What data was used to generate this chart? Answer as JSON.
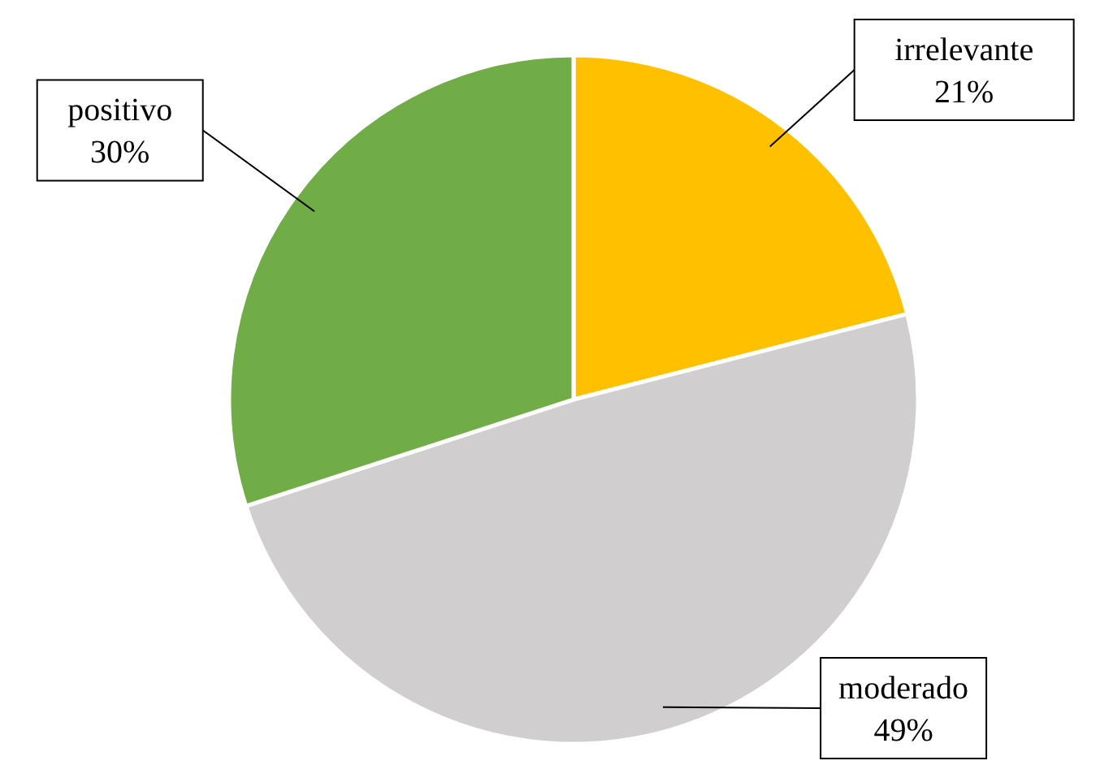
{
  "chart_data": {
    "type": "pie",
    "categories": [
      "irrelevante",
      "moderado",
      "positivo"
    ],
    "values": [
      21,
      49,
      30
    ],
    "colors": [
      "#ffc000",
      "#d0cece",
      "#70ad47"
    ],
    "value_labels": [
      "21%",
      "49%",
      "30%"
    ]
  }
}
